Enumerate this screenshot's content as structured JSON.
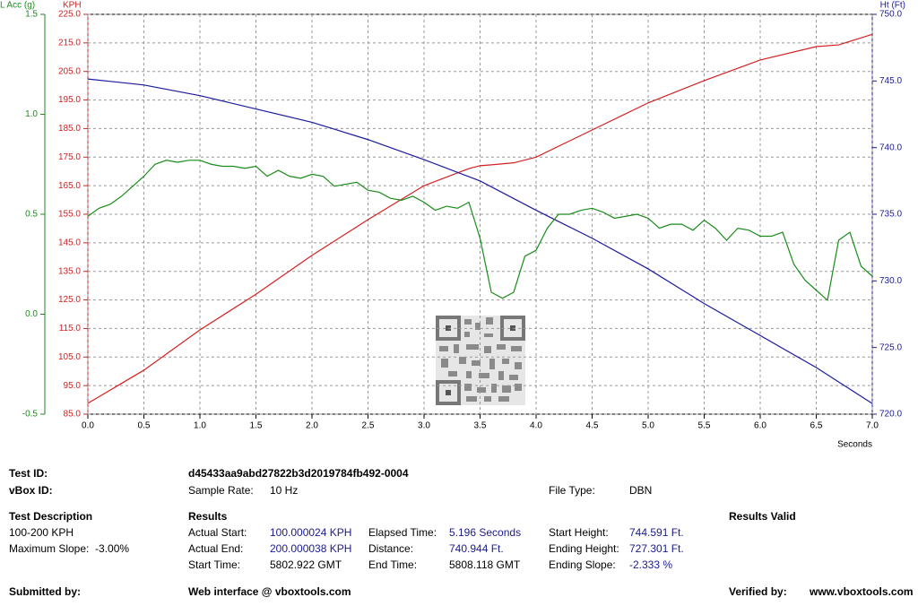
{
  "chart_data": {
    "type": "line",
    "title_left_outer": "L Acc (g)",
    "title_left": "KPH",
    "title_right": "Ht (Ft)",
    "x_label": "Seconds",
    "xlim": [
      0,
      7
    ],
    "xticks": [
      {
        "value": 0,
        "label": "0.0"
      },
      0.5,
      {
        "value": 1,
        "label": "1.0"
      },
      1.5,
      {
        "value": 2,
        "label": "2.0"
      },
      2.5,
      {
        "value": 3,
        "label": "3.0"
      },
      3.5,
      {
        "value": 4,
        "label": "4.0"
      },
      4.5,
      {
        "value": 5,
        "label": "5.0"
      },
      5.5,
      {
        "value": 6,
        "label": "6.0"
      },
      6.5,
      {
        "value": 7,
        "label": "7.0"
      }
    ],
    "ylim": [
      85,
      225
    ],
    "yticks": [
      {
        "value": 85,
        "label": "85.0"
      },
      {
        "value": 95,
        "label": "95.0"
      },
      {
        "value": 105,
        "label": "105.0"
      },
      {
        "value": 115,
        "label": "115.0"
      },
      {
        "value": 125,
        "label": "125.0"
      },
      {
        "value": 135,
        "label": "135.0"
      },
      {
        "value": 145,
        "label": "145.0"
      },
      {
        "value": 155,
        "label": "155.0"
      },
      {
        "value": 165,
        "label": "165.0"
      },
      {
        "value": 175,
        "label": "175.0"
      },
      {
        "value": 185,
        "label": "185.0"
      },
      {
        "value": 195,
        "label": "195.0"
      },
      {
        "value": 205,
        "label": "205.0"
      },
      {
        "value": 215,
        "label": "215.0"
      },
      {
        "value": 225,
        "label": "225.0"
      }
    ],
    "y2lim": [
      720,
      750
    ],
    "y2ticks": [
      {
        "value": 720,
        "label": "720.0"
      },
      {
        "value": 725,
        "label": "725.0"
      },
      {
        "value": 730,
        "label": "730.0"
      },
      {
        "value": 735,
        "label": "735.0"
      },
      {
        "value": 740,
        "label": "740.0"
      },
      {
        "value": 745,
        "label": "745.0"
      },
      {
        "value": 750,
        "label": "750.0"
      }
    ],
    "y3lim": [
      -0.5,
      1.5
    ],
    "y3ticks": [
      -0.5,
      {
        "value": 0,
        "label": "0.0"
      },
      0.5,
      {
        "value": 1,
        "label": "1.0"
      },
      1.5
    ],
    "grid": true,
    "series": [
      {
        "name": "KPH",
        "color": "#d42020",
        "axis": "y",
        "x": [
          0,
          0.5,
          1,
          1.5,
          2,
          2.5,
          3,
          3.4,
          3.5,
          3.6,
          3.8,
          4,
          4.5,
          5,
          5.5,
          6,
          6.5,
          6.7,
          7
        ],
        "values": [
          88.8,
          100.4,
          114.5,
          127,
          140.6,
          153.1,
          165,
          171,
          172,
          172.3,
          173,
          175,
          184.5,
          194,
          201.8,
          209,
          213.7,
          214.3,
          218
        ]
      },
      {
        "name": "Ht (Ft)",
        "color": "#1a1a9c",
        "axis": "y2",
        "x": [
          0,
          0.5,
          1,
          1.5,
          2,
          2.5,
          3,
          3.5,
          4,
          4.5,
          5,
          5.5,
          6,
          6.5,
          7
        ],
        "values": [
          745.15,
          744.7,
          743.9,
          742.9,
          741.9,
          740.6,
          739.1,
          737.5,
          735.3,
          733.2,
          730.9,
          728.3,
          725.9,
          723.5,
          720.8
        ]
      },
      {
        "name": "L Acc (g)",
        "color": "#1a8c1a",
        "axis": "y3",
        "x": [
          0,
          0.1,
          0.2,
          0.3,
          0.4,
          0.5,
          0.6,
          0.7,
          0.8,
          0.9,
          1,
          1.1,
          1.2,
          1.3,
          1.4,
          1.5,
          1.6,
          1.7,
          1.8,
          1.9,
          2,
          2.1,
          2.2,
          2.3,
          2.4,
          2.5,
          2.6,
          2.7,
          2.8,
          2.9,
          3,
          3.1,
          3.2,
          3.3,
          3.4,
          3.5,
          3.6,
          3.7,
          3.8,
          3.9,
          4,
          4.1,
          4.2,
          4.3,
          4.4,
          4.5,
          4.6,
          4.7,
          4.8,
          4.9,
          5,
          5.1,
          5.2,
          5.3,
          5.4,
          5.5,
          5.6,
          5.7,
          5.8,
          5.9,
          6,
          6.1,
          6.2,
          6.3,
          6.4,
          6.5,
          6.6,
          6.7,
          6.8,
          6.9,
          7
        ],
        "values": [
          0.49,
          0.53,
          0.55,
          0.59,
          0.64,
          0.69,
          0.75,
          0.77,
          0.76,
          0.77,
          0.77,
          0.75,
          0.74,
          0.74,
          0.73,
          0.74,
          0.69,
          0.72,
          0.69,
          0.68,
          0.7,
          0.69,
          0.64,
          0.65,
          0.66,
          0.62,
          0.61,
          0.58,
          0.57,
          0.59,
          0.56,
          0.52,
          0.54,
          0.53,
          0.56,
          0.38,
          0.11,
          0.08,
          0.11,
          0.29,
          0.32,
          0.43,
          0.5,
          0.5,
          0.52,
          0.53,
          0.51,
          0.48,
          0.49,
          0.5,
          0.48,
          0.43,
          0.45,
          0.45,
          0.42,
          0.47,
          0.43,
          0.37,
          0.43,
          0.42,
          0.39,
          0.39,
          0.41,
          0.25,
          0.17,
          0.12,
          0.07,
          0.37,
          0.41,
          0.24,
          0.19
        ]
      }
    ]
  },
  "report": {
    "test_id_label": "Test ID:",
    "test_id": "d45433aa9abd27822b3d2019784fb492-0004",
    "vbox_id_label": "vBox ID:",
    "sample_rate_label": "Sample Rate:",
    "sample_rate": "10 Hz",
    "file_type_label": "File Type:",
    "file_type": "DBN",
    "test_description_label": "Test Description",
    "test_description": "100-200 KPH",
    "maximum_slope": "Maximum Slope:  -3.00%",
    "results_label": "Results",
    "results_valid": "Results Valid",
    "actual_start_label": "Actual Start:",
    "actual_start": "100.000024 KPH",
    "actual_end_label": "Actual End:",
    "actual_end": "200.000038 KPH",
    "start_time_label": "Start Time:",
    "start_time": "5802.922 GMT",
    "elapsed_time_label": "Elapsed Time:",
    "elapsed_time": "5.196 Seconds",
    "distance_label": "Distance:",
    "distance": "740.944 Ft.",
    "end_time_label": "End Time:",
    "end_time": "5808.118 GMT",
    "start_height_label": "Start Height:",
    "start_height": "744.591 Ft.",
    "ending_height_label": "Ending Height:",
    "ending_height": "727.301 Ft.",
    "ending_slope_label": "Ending Slope:",
    "ending_slope": "-2.333 %",
    "submitted_by_label": "Submitted by:",
    "web_interface": "Web interface @ vboxtools.com",
    "verified_by_label": "Verified by:",
    "verified_by": "www.vboxtools.com"
  }
}
